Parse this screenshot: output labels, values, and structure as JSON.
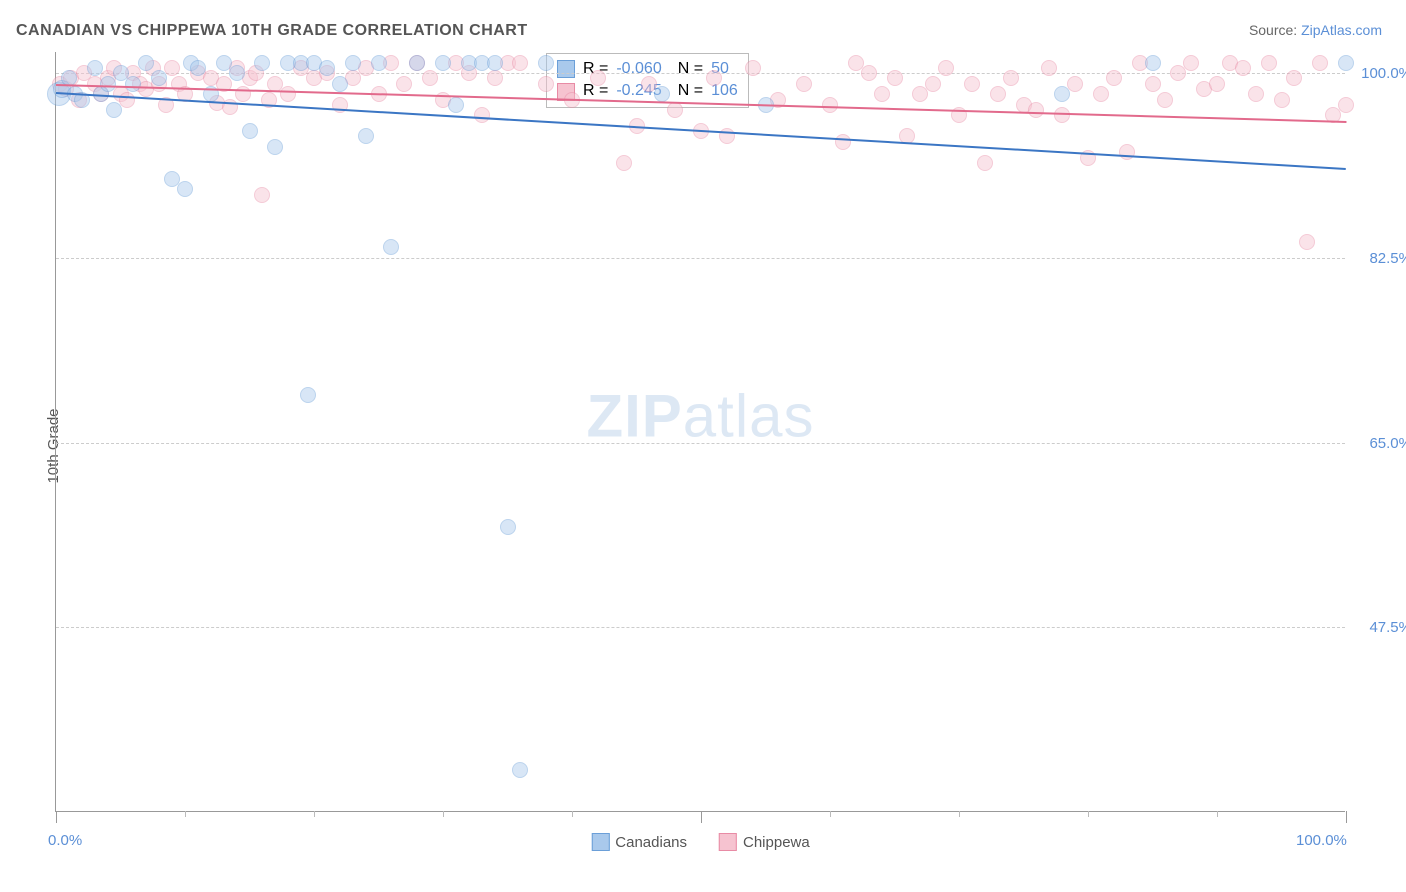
{
  "title": "CANADIAN VS CHIPPEWA 10TH GRADE CORRELATION CHART",
  "source_label": "Source:",
  "source_name": "ZipAtlas.com",
  "ylabel": "10th Grade",
  "watermark_zip": "ZIP",
  "watermark_atlas": "atlas",
  "chart": {
    "type": "scatter",
    "xlim": [
      0,
      100
    ],
    "ylim": [
      30,
      102
    ],
    "background_color": "#ffffff",
    "grid_color": "#cccccc",
    "axis_color": "#999999",
    "tick_color": "#5b8fd6",
    "label_fontsize": 15,
    "title_fontsize": 16,
    "yticks": [
      {
        "v": 47.5,
        "label": "47.5%"
      },
      {
        "v": 65.0,
        "label": "65.0%"
      },
      {
        "v": 82.5,
        "label": "82.5%"
      },
      {
        "v": 100.0,
        "label": "100.0%"
      }
    ],
    "xticks_major": [
      0,
      50,
      100
    ],
    "xticks_minor": [
      10,
      20,
      30,
      40,
      60,
      70,
      80,
      90
    ],
    "xlabels": [
      {
        "v": 0,
        "label": "0.0%"
      },
      {
        "v": 100,
        "label": "100.0%"
      }
    ],
    "marker_radius": 8,
    "marker_opacity": 0.45,
    "marker_border_width": 1
  },
  "series": {
    "canadians": {
      "label": "Canadians",
      "color_fill": "#a9c9ec",
      "color_stroke": "#6b9fd8",
      "trend_color": "#3b76c4",
      "trend": {
        "y_at_x0": 98.2,
        "y_at_x100": 91.0
      },
      "stats": {
        "R_label": "R =",
        "R": "-0.060",
        "N_label": "N =",
        "N": "50"
      },
      "points": [
        [
          0.2,
          98.0,
          12
        ],
        [
          0.5,
          98.5,
          9
        ],
        [
          1,
          99.5,
          8
        ],
        [
          1.5,
          98.0,
          8
        ],
        [
          2,
          97.5,
          8
        ],
        [
          3,
          100.5,
          8
        ],
        [
          3.5,
          98.0,
          8
        ],
        [
          4,
          99.0,
          8
        ],
        [
          4.5,
          96.5,
          8
        ],
        [
          5,
          100.0,
          8
        ],
        [
          6,
          99.0,
          8
        ],
        [
          7,
          101.0,
          8
        ],
        [
          8,
          99.5,
          8
        ],
        [
          9,
          90.0,
          8
        ],
        [
          10,
          89.0,
          8
        ],
        [
          10.5,
          101.0,
          8
        ],
        [
          11,
          100.5,
          8
        ],
        [
          12,
          98.0,
          8
        ],
        [
          13,
          101.0,
          8
        ],
        [
          14,
          100.0,
          8
        ],
        [
          15,
          94.5,
          8
        ],
        [
          16,
          101.0,
          8
        ],
        [
          17,
          93.0,
          8
        ],
        [
          18,
          101.0,
          8
        ],
        [
          19,
          101.0,
          8
        ],
        [
          19.5,
          69.5,
          8
        ],
        [
          20,
          101.0,
          8
        ],
        [
          21,
          100.5,
          8
        ],
        [
          22,
          99.0,
          8
        ],
        [
          23,
          101.0,
          8
        ],
        [
          24,
          94.0,
          8
        ],
        [
          25,
          101.0,
          8
        ],
        [
          26,
          83.5,
          8
        ],
        [
          28,
          101.0,
          8
        ],
        [
          30,
          101.0,
          8
        ],
        [
          31,
          97.0,
          8
        ],
        [
          32,
          101.0,
          8
        ],
        [
          33,
          101.0,
          8
        ],
        [
          34,
          101.0,
          8
        ],
        [
          35,
          57.0,
          8
        ],
        [
          36,
          34.0,
          8
        ],
        [
          38,
          101.0,
          8
        ],
        [
          47,
          98.0,
          8
        ],
        [
          55,
          97.0,
          8
        ],
        [
          78,
          98.0,
          8
        ],
        [
          85,
          101.0,
          8
        ],
        [
          100,
          101.0,
          8
        ]
      ]
    },
    "chippewa": {
      "label": "Chippewa",
      "color_fill": "#f6c3d0",
      "color_stroke": "#e88ba5",
      "trend_color": "#e26a8c",
      "trend": {
        "y_at_x0": 99.0,
        "y_at_x100": 95.5
      },
      "stats": {
        "R_label": "R =",
        "R": "-0.245",
        "N_label": "N =",
        "N": "106"
      },
      "points": [
        [
          0.3,
          99.0,
          8
        ],
        [
          0.8,
          98.5,
          8
        ],
        [
          1.2,
          99.5,
          8
        ],
        [
          1.8,
          97.5,
          8
        ],
        [
          2.2,
          100.0,
          8
        ],
        [
          3,
          99.0,
          8
        ],
        [
          3.5,
          98.0,
          8
        ],
        [
          4,
          99.5,
          8
        ],
        [
          4.5,
          100.5,
          8
        ],
        [
          5,
          98.0,
          8
        ],
        [
          5.5,
          97.5,
          8
        ],
        [
          6,
          100.0,
          8
        ],
        [
          6.5,
          99.0,
          8
        ],
        [
          7,
          98.5,
          8
        ],
        [
          7.5,
          100.5,
          8
        ],
        [
          8,
          99.0,
          8
        ],
        [
          8.5,
          97.0,
          8
        ],
        [
          9,
          100.5,
          8
        ],
        [
          9.5,
          99.0,
          8
        ],
        [
          10,
          98.0,
          8
        ],
        [
          11,
          100.0,
          8
        ],
        [
          12,
          99.5,
          8
        ],
        [
          12.5,
          97.2,
          8
        ],
        [
          13,
          99.0,
          8
        ],
        [
          13.5,
          96.8,
          8
        ],
        [
          14,
          100.5,
          8
        ],
        [
          14.5,
          98.0,
          8
        ],
        [
          15,
          99.5,
          8
        ],
        [
          15.5,
          100.0,
          8
        ],
        [
          16,
          88.5,
          8
        ],
        [
          16.5,
          97.5,
          8
        ],
        [
          17,
          99.0,
          8
        ],
        [
          18,
          98.0,
          8
        ],
        [
          19,
          100.5,
          8
        ],
        [
          20,
          99.5,
          8
        ],
        [
          21,
          100.0,
          8
        ],
        [
          22,
          97.0,
          8
        ],
        [
          23,
          99.5,
          8
        ],
        [
          24,
          100.5,
          8
        ],
        [
          25,
          98.0,
          8
        ],
        [
          26,
          101.0,
          8
        ],
        [
          27,
          99.0,
          8
        ],
        [
          28,
          101.0,
          8
        ],
        [
          29,
          99.5,
          8
        ],
        [
          30,
          97.5,
          8
        ],
        [
          31,
          101.0,
          8
        ],
        [
          32,
          100.0,
          8
        ],
        [
          33,
          96.0,
          8
        ],
        [
          34,
          99.5,
          8
        ],
        [
          35,
          101.0,
          8
        ],
        [
          36,
          101.0,
          8
        ],
        [
          38,
          99.0,
          8
        ],
        [
          40,
          97.5,
          8
        ],
        [
          42,
          99.5,
          8
        ],
        [
          44,
          91.5,
          8
        ],
        [
          45,
          95.0,
          8
        ],
        [
          46,
          99.0,
          8
        ],
        [
          48,
          96.5,
          8
        ],
        [
          50,
          94.5,
          8
        ],
        [
          51,
          99.5,
          8
        ],
        [
          52,
          94.0,
          8
        ],
        [
          54,
          100.5,
          8
        ],
        [
          56,
          97.5,
          8
        ],
        [
          58,
          99.0,
          8
        ],
        [
          60,
          97.0,
          8
        ],
        [
          61,
          93.5,
          8
        ],
        [
          62,
          101.0,
          8
        ],
        [
          63,
          100.0,
          8
        ],
        [
          64,
          98.0,
          8
        ],
        [
          65,
          99.5,
          8
        ],
        [
          66,
          94.0,
          8
        ],
        [
          67,
          98.0,
          8
        ],
        [
          68,
          99.0,
          8
        ],
        [
          69,
          100.5,
          8
        ],
        [
          70,
          96.0,
          8
        ],
        [
          71,
          99.0,
          8
        ],
        [
          72,
          91.5,
          8
        ],
        [
          73,
          98.0,
          8
        ],
        [
          74,
          99.5,
          8
        ],
        [
          75,
          97.0,
          8
        ],
        [
          76,
          96.5,
          8
        ],
        [
          77,
          100.5,
          8
        ],
        [
          78,
          96.0,
          8
        ],
        [
          79,
          99.0,
          8
        ],
        [
          80,
          92.0,
          8
        ],
        [
          81,
          98.0,
          8
        ],
        [
          82,
          99.5,
          8
        ],
        [
          83,
          92.5,
          8
        ],
        [
          84,
          101.0,
          8
        ],
        [
          85,
          99.0,
          8
        ],
        [
          86,
          97.5,
          8
        ],
        [
          87,
          100.0,
          8
        ],
        [
          88,
          101.0,
          8
        ],
        [
          89,
          98.5,
          8
        ],
        [
          90,
          99.0,
          8
        ],
        [
          91,
          101.0,
          8
        ],
        [
          92,
          100.5,
          8
        ],
        [
          93,
          98.0,
          8
        ],
        [
          94,
          101.0,
          8
        ],
        [
          95,
          97.5,
          8
        ],
        [
          96,
          99.5,
          8
        ],
        [
          97,
          84.0,
          8
        ],
        [
          98,
          101.0,
          8
        ],
        [
          99,
          96.0,
          8
        ],
        [
          100,
          97.0,
          8
        ]
      ]
    }
  }
}
